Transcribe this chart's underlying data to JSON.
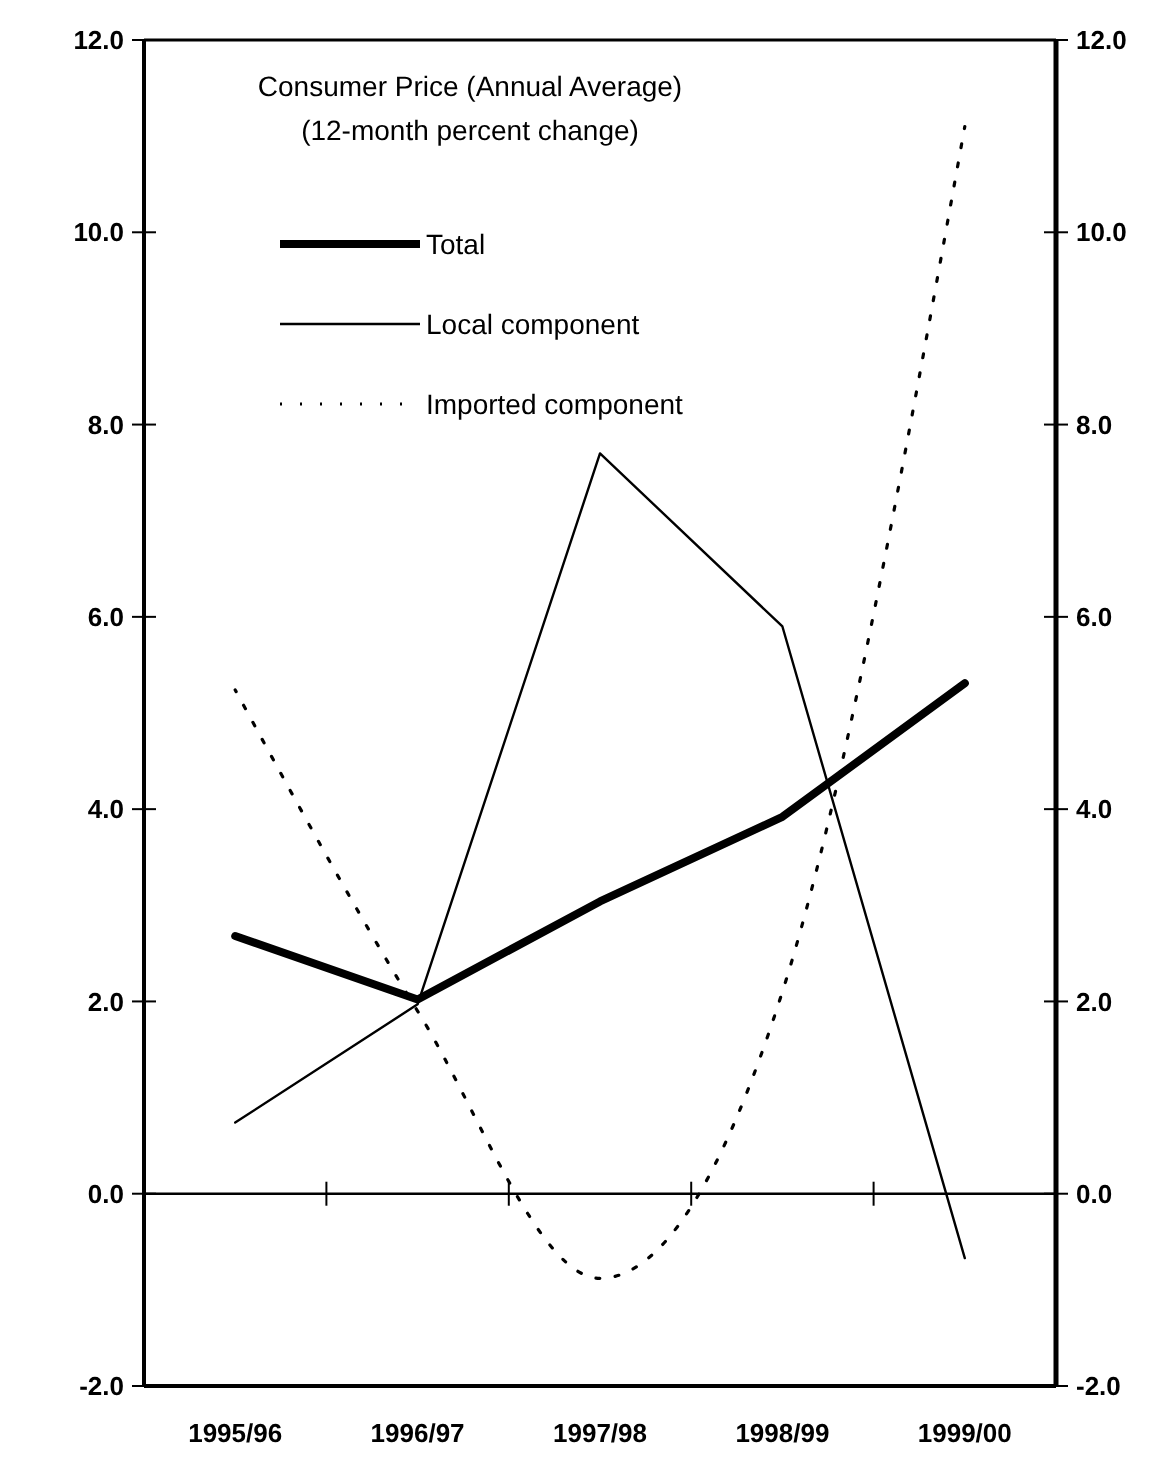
{
  "chart_data": {
    "type": "line",
    "title": "Consumer Price (Annual Average)",
    "subtitle": "(12-month percent change)",
    "categories": [
      "1995/96",
      "1996/97",
      "1997/98",
      "1998/99",
      "1999/00"
    ],
    "series": [
      {
        "name": "Total",
        "color": "#000000",
        "line_style": "solid",
        "values": [
          2.68,
          2.02,
          3.04,
          3.92,
          5.31
        ]
      },
      {
        "name": "Local component",
        "color": "#000000",
        "line_style": "solid",
        "values": [
          0.74,
          1.97,
          7.7,
          5.9,
          -0.67
        ]
      },
      {
        "name": "Imported component",
        "color": "#000000",
        "line_style": "dotted",
        "values": [
          5.24,
          1.9,
          -0.88,
          2.1,
          11.1
        ]
      }
    ],
    "ylim": [
      -2,
      12
    ],
    "yticks": [
      {
        "value": -2,
        "label": "-2.0"
      },
      {
        "value": 0,
        "label": "0.0"
      },
      {
        "value": 2,
        "label": "2.0"
      },
      {
        "value": 4,
        "label": "4.0"
      },
      {
        "value": 6,
        "label": "6.0"
      },
      {
        "value": 8,
        "label": "8.0"
      },
      {
        "value": 10,
        "label": "10.0"
      },
      {
        "value": 12,
        "label": "12.0"
      }
    ],
    "y2lim": [
      -2,
      12
    ],
    "y2ticks": [
      {
        "value": -2,
        "label": "-2.0"
      },
      {
        "value": 0,
        "label": "0.0"
      },
      {
        "value": 2,
        "label": "2.0"
      },
      {
        "value": 4,
        "label": "4.0"
      },
      {
        "value": 6,
        "label": "6.0"
      },
      {
        "value": 8,
        "label": "8.0"
      },
      {
        "value": 10,
        "label": "10.0"
      },
      {
        "value": 12,
        "label": "12.0"
      }
    ],
    "ref_lines": [
      {
        "axis": "y",
        "value": 0,
        "color": "#000000"
      }
    ],
    "grid": false,
    "legend": "top left",
    "marker": "none"
  }
}
